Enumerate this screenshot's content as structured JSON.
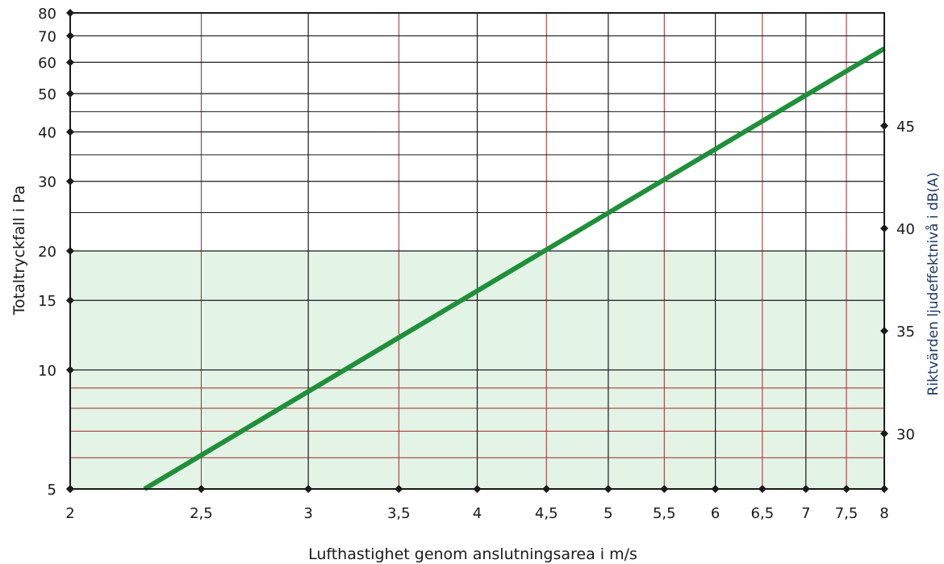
{
  "chart_data": {
    "type": "line",
    "xlabel": "Lufthastighet genom anslutningsarea  i m/s",
    "ylabel": "Totaltryckfall i Pa",
    "y2label": "Riktvärden ljudeffektnivå i dB(A)",
    "x_scale": "log",
    "y_scale": "log",
    "xlim": [
      2,
      8
    ],
    "ylim": [
      5,
      80
    ],
    "y2lim": [
      27.3,
      50.5
    ],
    "x_ticks": [
      2,
      2.5,
      3,
      3.5,
      4,
      4.5,
      5,
      5.5,
      6,
      6.5,
      7,
      7.5,
      8
    ],
    "x_tick_labels": [
      "2",
      "2,5",
      "3",
      "3,5",
      "4",
      "4,5",
      "5",
      "5,5",
      "6",
      "6,5",
      "7",
      "7,5",
      "8"
    ],
    "y_ticks": [
      5,
      10,
      15,
      20,
      30,
      40,
      50,
      60,
      70,
      80
    ],
    "y_tick_labels": [
      "5",
      "10",
      "15",
      "20",
      "30",
      "40",
      "50",
      "60",
      "70",
      "80"
    ],
    "y2_ticks": [
      30,
      35,
      40,
      45
    ],
    "y2_tick_labels": [
      "30",
      "35",
      "40",
      "45"
    ],
    "minor_x": [
      2.5,
      3.5,
      4.5,
      5.5,
      6.5,
      7.5
    ],
    "extra_h_lines_black": [
      25,
      35,
      45
    ],
    "extra_h_lines_red": [
      6,
      7,
      8,
      9
    ],
    "shaded_region": {
      "y_from": 5,
      "y_to": 20,
      "color": "#e3f3e6"
    },
    "series": [
      {
        "x": [
          2.27,
          8.0
        ],
        "y": [
          5.0,
          65.0
        ],
        "color": "#1f8f3a"
      }
    ],
    "colors": {
      "grid": "#1a1a1a",
      "grid_minor": "#a02828",
      "line": "#1f8f3a",
      "marker": "#1a1a1a",
      "y2_label": "#1f3864"
    }
  }
}
